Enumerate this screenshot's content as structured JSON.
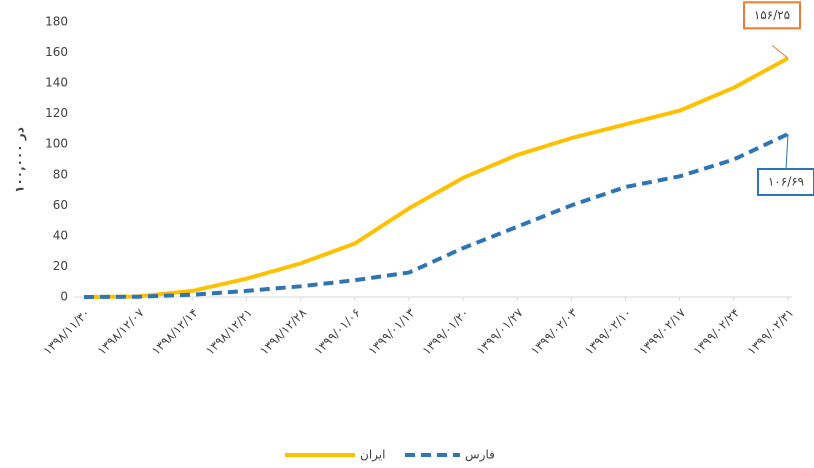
{
  "chart_data": {
    "type": "line",
    "y_label": "در ۱۰۰,۰۰۰",
    "categories": [
      "۱۳۹۸/۱۱/۳۰",
      "۱۳۹۸/۱۲/۰۷",
      "۱۳۹۸/۱۲/۱۴",
      "۱۳۹۸/۱۲/۲۱",
      "۱۳۹۸/۱۲/۲۸",
      "۱۳۹۹/۰۱/۰۶",
      "۱۳۹۹/۰۱/۱۳",
      "۱۳۹۹/۰۱/۲۰",
      "۱۳۹۹/۰۱/۲۷",
      "۱۳۹۹/۰۲/۰۳",
      "۱۳۹۹/۰۲/۱۰",
      "۱۳۹۹/۰۲/۱۷",
      "۱۳۹۹/۰۲/۲۴",
      "۱۳۹۹/۰۲/۳۱"
    ],
    "series": [
      {
        "name": "ایران",
        "color": "#ffc000",
        "dash": false,
        "values": [
          0,
          0.3,
          4,
          12,
          22,
          35,
          58,
          78,
          93,
          104,
          113,
          122,
          137,
          156.25
        ],
        "end_label": "۱۵۶/۲۵",
        "end_label_border": "#ed7d31"
      },
      {
        "name": "فارس",
        "color": "#2e75b6",
        "dash": true,
        "values": [
          0,
          0.2,
          1.5,
          4,
          7,
          11,
          16,
          32,
          46,
          60,
          72,
          79,
          90,
          106.69
        ],
        "end_label": "۱۰۶/۶۹",
        "end_label_border": "#2e75b6"
      }
    ],
    "ylim": [
      0,
      180
    ],
    "yticks": [
      0,
      20,
      40,
      60,
      80,
      100,
      120,
      140,
      160,
      180
    ],
    "grid": false,
    "legend": "bottom"
  }
}
